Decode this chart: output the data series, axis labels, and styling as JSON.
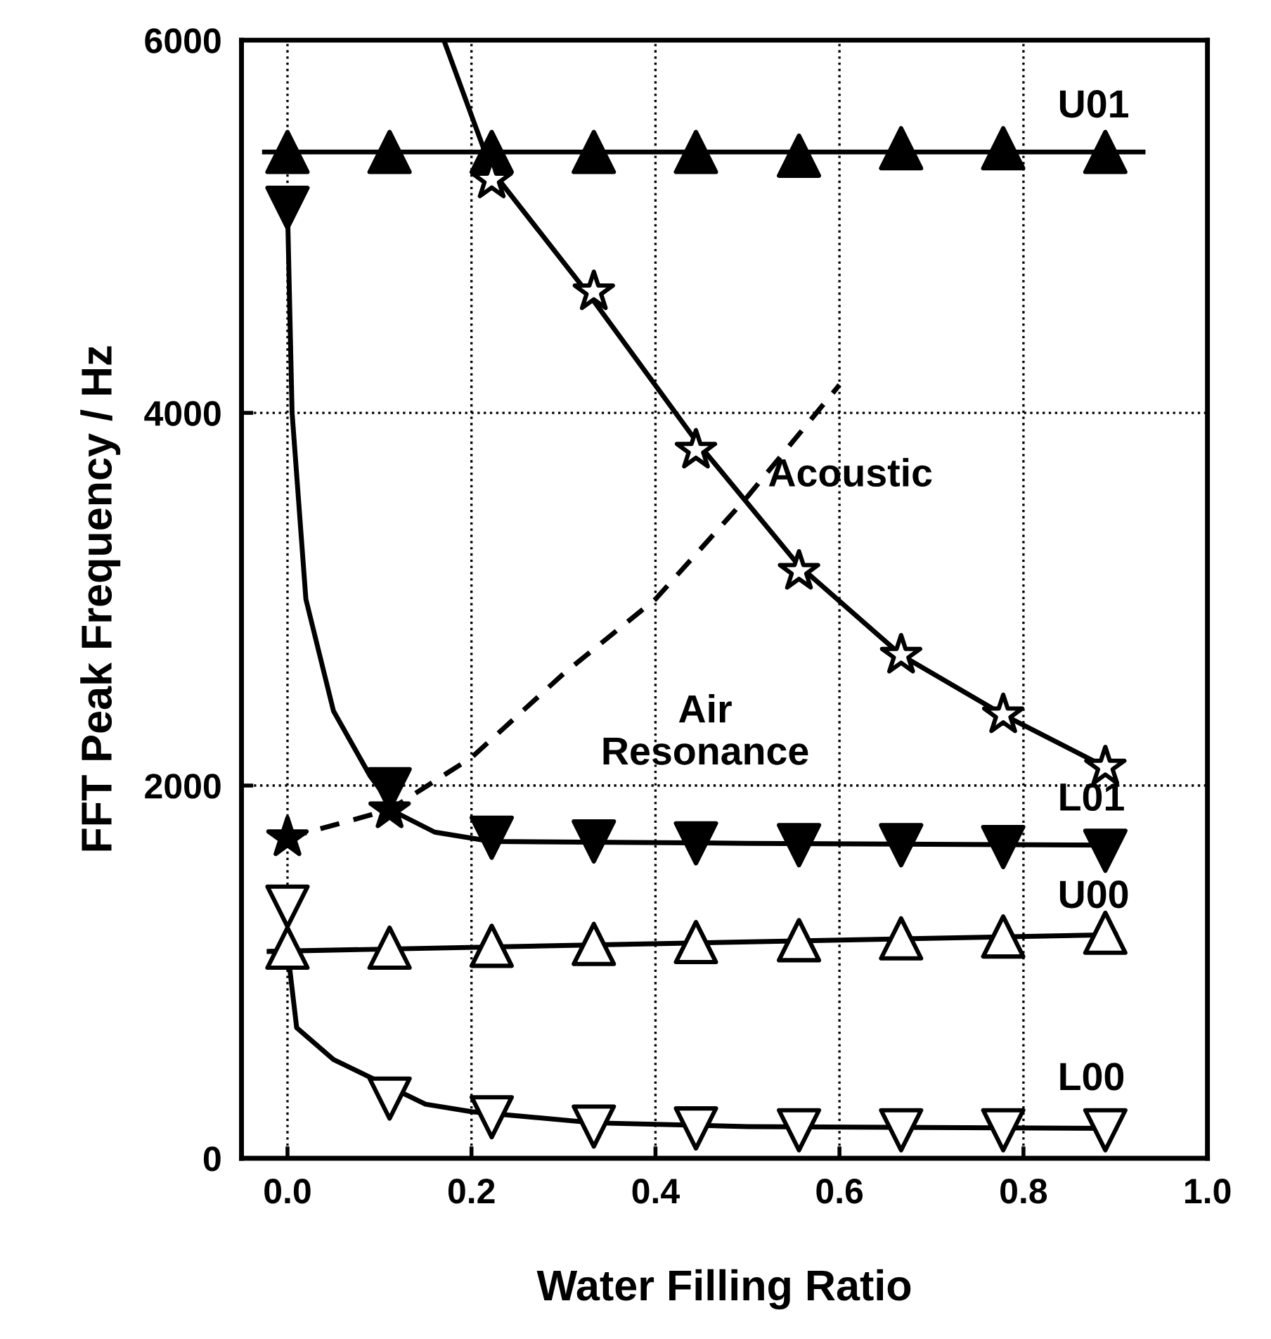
{
  "chart_data": {
    "type": "scatter",
    "xlabel": "Water Filling Ratio",
    "ylabel": "FFT Peak Frequency / Hz",
    "xlim": [
      -0.05,
      1.0
    ],
    "ylim": [
      0,
      6000
    ],
    "xticks": [
      {
        "value": 0,
        "label": "0.0"
      },
      {
        "value": 0.2,
        "label": "0.2"
      },
      {
        "value": 0.4,
        "label": "0.4"
      },
      {
        "value": 0.6,
        "label": "0.6"
      },
      {
        "value": 0.8,
        "label": "0.8"
      },
      {
        "value": 1.0,
        "label": "1.0"
      }
    ],
    "yticks": [
      0,
      2000,
      4000,
      6000
    ],
    "grid": true,
    "series": [
      {
        "type": "scatter",
        "marker": "triangle",
        "color": "#000000",
        "x": [
          0,
          0.111,
          0.222,
          0.333,
          0.444,
          0.556,
          0.667,
          0.778,
          0.889
        ],
        "values": [
          5400,
          5400,
          5400,
          5400,
          5400,
          5380,
          5420,
          5420,
          5400
        ]
      },
      {
        "type": "scatter",
        "marker": "triangle_down",
        "color": "#000000",
        "x": [
          0,
          0.111,
          0.222,
          0.333,
          0.444,
          0.556,
          0.667,
          0.778,
          0.889
        ],
        "values": [
          5100,
          1980,
          1720,
          1700,
          1690,
          1680,
          1680,
          1670,
          1650
        ]
      },
      {
        "type": "scatter",
        "marker": "triangle",
        "color": "#ffffff",
        "x": [
          0,
          0.111,
          0.222,
          0.333,
          0.444,
          0.556,
          0.667,
          0.778,
          0.889
        ],
        "values": [
          1130,
          1130,
          1140,
          1150,
          1160,
          1170,
          1180,
          1190,
          1210
        ]
      },
      {
        "type": "scatter",
        "marker": "triangle_down",
        "color": "#ffffff",
        "x": [
          0,
          0.111,
          0.222,
          0.333,
          0.444,
          0.556,
          0.667,
          0.778,
          0.889
        ],
        "values": [
          1350,
          320,
          220,
          170,
          160,
          150,
          150,
          150,
          150
        ]
      },
      {
        "type": "scatter",
        "marker": "star",
        "color": "#ffffff",
        "x": [
          0.222,
          0.333,
          0.444,
          0.556,
          0.667,
          0.778,
          0.889
        ],
        "values": [
          5250,
          4650,
          3800,
          3150,
          2700,
          2380,
          2100
        ]
      },
      {
        "type": "scatter",
        "marker": "star",
        "color": "#000000",
        "x": [
          0,
          0.111
        ],
        "values": [
          1720,
          1870
        ]
      },
      {
        "type": "line",
        "line_style": "solid",
        "color": "#000000",
        "x": [
          -0.025,
          0.93
        ],
        "values": [
          5400,
          5400
        ]
      },
      {
        "type": "line",
        "line_style": "solid",
        "color": "#000000",
        "x": [
          0,
          0.005,
          0.02,
          0.05,
          0.09,
          0.12,
          0.16,
          0.222,
          0.5,
          0.9
        ],
        "values": [
          5100,
          4000,
          3000,
          2400,
          2050,
          1850,
          1750,
          1700,
          1690,
          1680
        ]
      },
      {
        "type": "line",
        "line_style": "solid",
        "color": "#000000",
        "x": [
          -0.02,
          0.9
        ],
        "values": [
          1110,
          1200
        ]
      },
      {
        "type": "line",
        "line_style": "solid",
        "color": "#000000",
        "x": [
          0,
          0.01,
          0.05,
          0.15,
          0.2,
          0.333,
          0.5,
          0.9
        ],
        "values": [
          1120,
          700,
          530,
          290,
          250,
          190,
          170,
          160
        ]
      },
      {
        "type": "line",
        "line_style": "solid",
        "color": "#000000",
        "x": [
          0.17,
          0.222,
          0.333,
          0.444,
          0.556,
          0.667,
          0.778,
          0.889
        ],
        "values": [
          6000,
          5300,
          4600,
          3850,
          3180,
          2700,
          2380,
          2100
        ]
      },
      {
        "type": "line",
        "line_style": "dashed",
        "color": "#000000",
        "x": [
          0,
          0.111,
          0.2,
          0.3,
          0.4,
          0.5,
          0.6
        ],
        "values": [
          1720,
          1870,
          2150,
          2600,
          3000,
          3550,
          4150
        ]
      }
    ],
    "annotations": [
      "U01",
      "L01",
      "U00",
      "L00",
      "Acoustic",
      "Air\nResonance"
    ]
  }
}
